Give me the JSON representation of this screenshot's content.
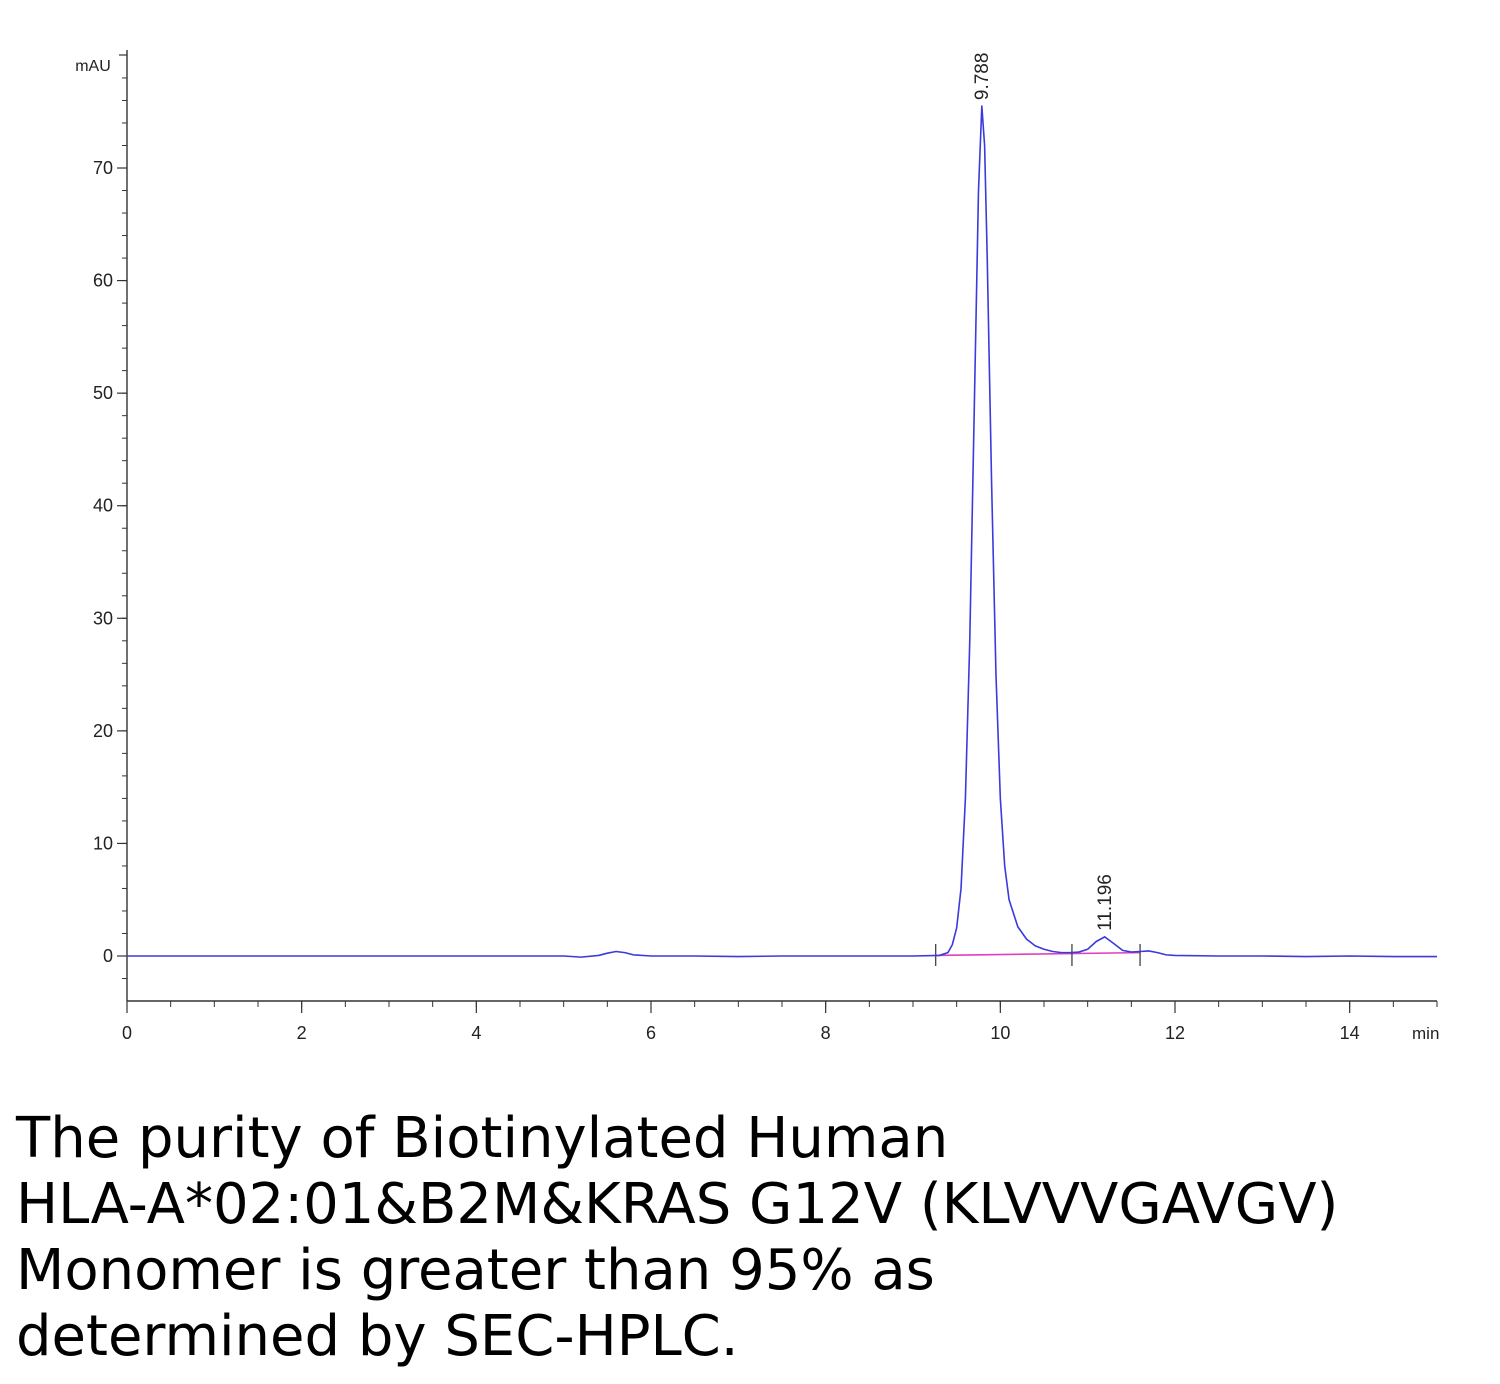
{
  "chart_data": {
    "type": "line",
    "title": "",
    "xlabel": "min",
    "ylabel": "mAU",
    "xlim": [
      0,
      15
    ],
    "ylim": [
      -4,
      80
    ],
    "x_ticks": [
      0,
      2,
      4,
      6,
      8,
      10,
      12,
      14
    ],
    "y_ticks": [
      0,
      10,
      20,
      30,
      40,
      50,
      60,
      70
    ],
    "grid": false,
    "legend": "none",
    "colors": {
      "trace": "#3a3adf",
      "baseline": "#e040c0",
      "axis": "#333333"
    },
    "peaks": [
      {
        "label": "9.788",
        "retention_time": 9.788,
        "height": 75.5
      },
      {
        "label": "11.196",
        "retention_time": 11.196,
        "height": 1.7
      }
    ],
    "integration_markers": [
      9.26,
      10.82,
      11.6
    ],
    "series": [
      {
        "values": [
          [
            0,
            0
          ],
          [
            0.5,
            0
          ],
          [
            1.0,
            0
          ],
          [
            1.5,
            0
          ],
          [
            2.0,
            0
          ],
          [
            2.5,
            0
          ],
          [
            3.0,
            0
          ],
          [
            3.5,
            0
          ],
          [
            4.0,
            0
          ],
          [
            4.5,
            0
          ],
          [
            5.0,
            0
          ],
          [
            5.2,
            -0.1
          ],
          [
            5.4,
            0.05
          ],
          [
            5.5,
            0.25
          ],
          [
            5.6,
            0.4
          ],
          [
            5.7,
            0.3
          ],
          [
            5.8,
            0.1
          ],
          [
            6.0,
            0
          ],
          [
            6.5,
            0
          ],
          [
            7.0,
            -0.05
          ],
          [
            7.5,
            0
          ],
          [
            8.0,
            0
          ],
          [
            8.5,
            0
          ],
          [
            9.0,
            0
          ],
          [
            9.3,
            0.05
          ],
          [
            9.4,
            0.3
          ],
          [
            9.45,
            1.0
          ],
          [
            9.5,
            2.5
          ],
          [
            9.55,
            6.0
          ],
          [
            9.6,
            14.0
          ],
          [
            9.65,
            28.0
          ],
          [
            9.7,
            48.0
          ],
          [
            9.75,
            68.0
          ],
          [
            9.788,
            75.5
          ],
          [
            9.82,
            72.0
          ],
          [
            9.85,
            62.0
          ],
          [
            9.9,
            42.0
          ],
          [
            9.95,
            25.0
          ],
          [
            10.0,
            14.0
          ],
          [
            10.05,
            8.0
          ],
          [
            10.1,
            5.0
          ],
          [
            10.2,
            2.6
          ],
          [
            10.3,
            1.5
          ],
          [
            10.4,
            0.9
          ],
          [
            10.5,
            0.6
          ],
          [
            10.6,
            0.4
          ],
          [
            10.7,
            0.3
          ],
          [
            10.8,
            0.3
          ],
          [
            10.9,
            0.35
          ],
          [
            11.0,
            0.6
          ],
          [
            11.1,
            1.3
          ],
          [
            11.196,
            1.7
          ],
          [
            11.3,
            1.1
          ],
          [
            11.4,
            0.5
          ],
          [
            11.5,
            0.35
          ],
          [
            11.6,
            0.4
          ],
          [
            11.7,
            0.45
          ],
          [
            11.8,
            0.3
          ],
          [
            11.9,
            0.1
          ],
          [
            12.0,
            0.05
          ],
          [
            12.5,
            0
          ],
          [
            13.0,
            0
          ],
          [
            13.5,
            -0.05
          ],
          [
            14.0,
            0
          ],
          [
            14.5,
            -0.05
          ],
          [
            15.0,
            -0.05
          ]
        ]
      }
    ]
  },
  "caption": {
    "line1": "The purity of Biotinylated Human",
    "line2": "HLA-A*02:01&B2M&KRAS G12V (KLVVVGAVGV)",
    "line3": "Monomer is greater than 95% as",
    "line4": "determined by SEC-HPLC."
  }
}
